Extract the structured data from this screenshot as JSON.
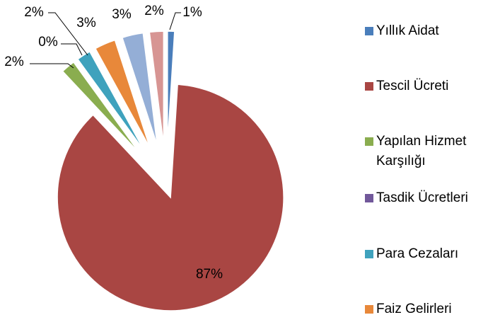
{
  "chart_data": {
    "type": "pie",
    "categories": [
      "Yıllık Aidat",
      "Tescil Ücreti",
      "Yapılan Hizmet Karşılığı",
      "Tasdik Ücretleri",
      "Para Cezaları",
      "Faiz Gelirleri",
      null,
      null
    ],
    "values": [
      1,
      87,
      2,
      0,
      2,
      3,
      3,
      2
    ],
    "value_labels": [
      "1%",
      "87%",
      "2%",
      "0%",
      "2%",
      "3%",
      "3%",
      "2%"
    ],
    "colors": [
      "#4a7ebb",
      "#a94643",
      "#8aad4f",
      "#71589a",
      "#3fa2bd",
      "#e8883a",
      "#94aed6",
      "#d79593"
    ],
    "legend": "right"
  }
}
